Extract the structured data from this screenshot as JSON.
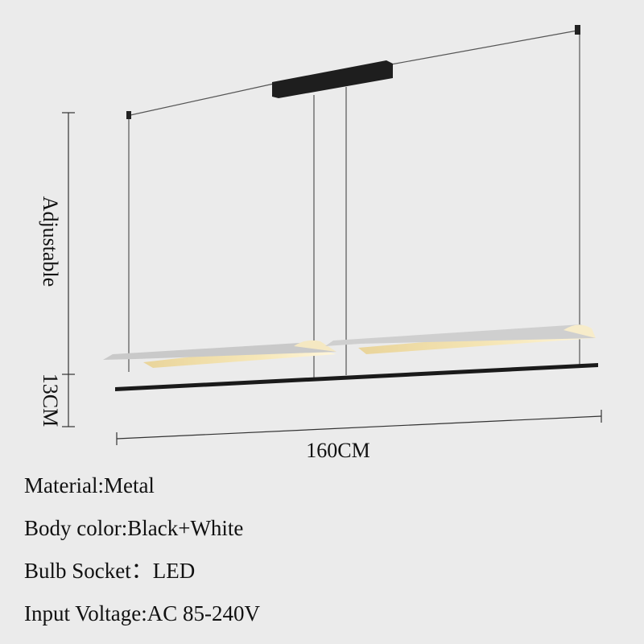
{
  "dimensions": {
    "height_label": "Adjustable",
    "drop_label": "13CM",
    "width_label": "160CM"
  },
  "specs": [
    "Material:Metal",
    "Body color:Black+White",
    "Bulb Socket：LED",
    "Input Voltage:AC 85-240V"
  ]
}
